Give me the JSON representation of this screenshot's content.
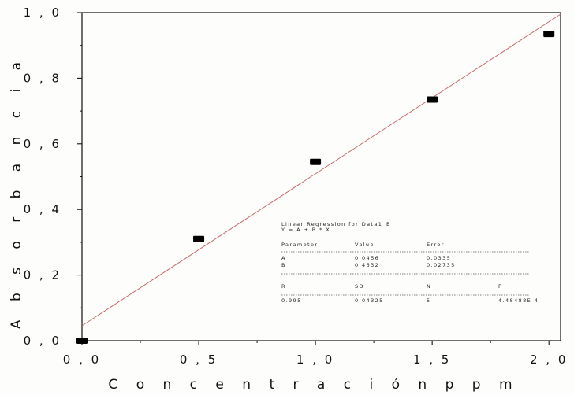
{
  "chart_data": {
    "type": "scatter",
    "xlabel": "C o n c e n t r a c i ó n   p p m",
    "ylabel": "A b s o r b a n c i a",
    "xlim": [
      0,
      2.05
    ],
    "ylim": [
      0,
      1.0
    ],
    "x_ticks": [
      {
        "value": 0.0,
        "label": "0 , 0"
      },
      {
        "value": 0.5,
        "label": "0 , 5"
      },
      {
        "value": 1.0,
        "label": "1 , 0"
      },
      {
        "value": 1.5,
        "label": "1 , 5"
      },
      {
        "value": 2.0,
        "label": "2 , 0"
      }
    ],
    "y_ticks": [
      {
        "value": 0.0,
        "label": "0 , 0"
      },
      {
        "value": 0.2,
        "label": "0 , 2"
      },
      {
        "value": 0.4,
        "label": "0 , 4"
      },
      {
        "value": 0.6,
        "label": "0 , 6"
      },
      {
        "value": 0.8,
        "label": "0 , 8"
      },
      {
        "value": 1.0,
        "label": "1 , 0"
      }
    ],
    "points": [
      {
        "x": 0.0,
        "y": 0.0
      },
      {
        "x": 0.5,
        "y": 0.31
      },
      {
        "x": 1.0,
        "y": 0.545
      },
      {
        "x": 1.5,
        "y": 0.735
      },
      {
        "x": 2.0,
        "y": 0.935
      }
    ],
    "fit_line": {
      "intercept": 0.0456,
      "slope": 0.4632,
      "color": "#c96a6a"
    },
    "marker_color": "#000000",
    "regression_box": {
      "title": "Linear Regression for Data1_B",
      "equation": "Y = A + B * X",
      "param_header": [
        "Parameter",
        "Value",
        "Error"
      ],
      "param_rows": [
        [
          "A",
          "0.0456",
          "0.0335"
        ],
        [
          "B",
          "0.4632",
          "0.02735"
        ]
      ],
      "stat_header": [
        "R",
        "SD",
        "N",
        "P"
      ],
      "stat_row": [
        "0.995",
        "0.04325",
        "5",
        "4.48488E-4"
      ]
    }
  }
}
